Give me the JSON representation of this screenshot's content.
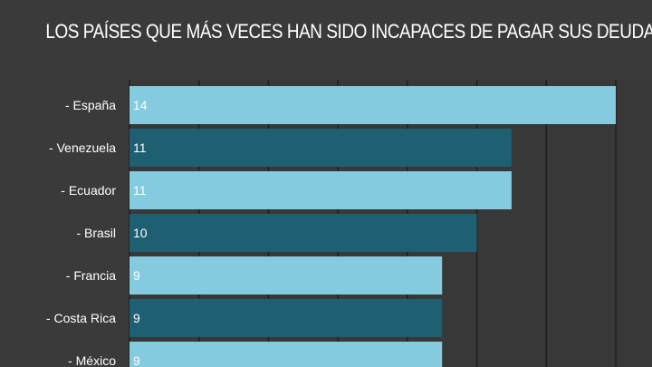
{
  "chart_data": {
    "type": "bar",
    "orientation": "horizontal",
    "title": "LOS PAÍSES QUE MÁS VECES HAN SIDO INCAPACES DE PAGAR SUS DEUDAS",
    "categories": [
      "- España",
      "- Venezuela",
      "- Ecuador",
      "- Brasil",
      "- Francia",
      "- Costa Rica",
      "- México"
    ],
    "values": [
      14,
      11,
      11,
      10,
      9,
      9,
      9
    ],
    "xlim": [
      0,
      14
    ],
    "x_gridlines": [
      0,
      2,
      4,
      6,
      8,
      10,
      12,
      14
    ],
    "grid": true,
    "colors": {
      "background": "#3a3a3a",
      "plot_background": "#383838",
      "bar_light": "#85cbe0",
      "bar_dark": "#1e5f72",
      "gridline": "#1f1f1f",
      "text": "#ffffff"
    }
  }
}
